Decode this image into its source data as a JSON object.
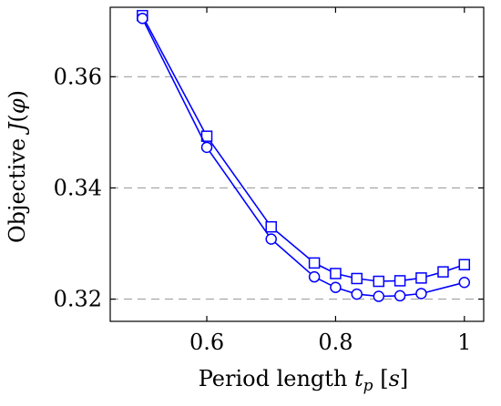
{
  "chart_data": {
    "type": "line",
    "xlabel": {
      "prefix": "Period length ",
      "var": "t",
      "sub": "p",
      "suffix": " [",
      "unit": "s",
      "close": "]"
    },
    "ylabel": {
      "prefix": "Objective ",
      "var": "J",
      "open": "(",
      "arg": "φ",
      "close": ")"
    },
    "xlim": [
      0.45,
      1.03
    ],
    "ylim": [
      0.316,
      0.3725
    ],
    "xticks": [
      0.6,
      0.8,
      1.0
    ],
    "xtick_labels": [
      "0.6",
      "0.8",
      "1"
    ],
    "yticks": [
      0.32,
      0.34,
      0.36
    ],
    "ytick_labels": [
      "0.32",
      "0.34",
      "0.36"
    ],
    "grid": "horizontal-dashed",
    "color": "#0000ff",
    "series": [
      {
        "marker": "square",
        "x": [
          0.5,
          0.6,
          0.7,
          0.767,
          0.8,
          0.833,
          0.867,
          0.9,
          0.933,
          0.967,
          1.0
        ],
        "y": [
          0.371,
          0.3493,
          0.333,
          0.3265,
          0.3246,
          0.3237,
          0.3232,
          0.3233,
          0.3238,
          0.3249,
          0.3262
        ]
      },
      {
        "marker": "circle",
        "x": [
          0.5,
          0.6,
          0.7,
          0.767,
          0.8,
          0.833,
          0.867,
          0.9,
          0.933,
          1.0
        ],
        "y": [
          0.3705,
          0.3473,
          0.3308,
          0.324,
          0.3221,
          0.3209,
          0.3205,
          0.3206,
          0.321,
          0.323
        ]
      }
    ]
  }
}
